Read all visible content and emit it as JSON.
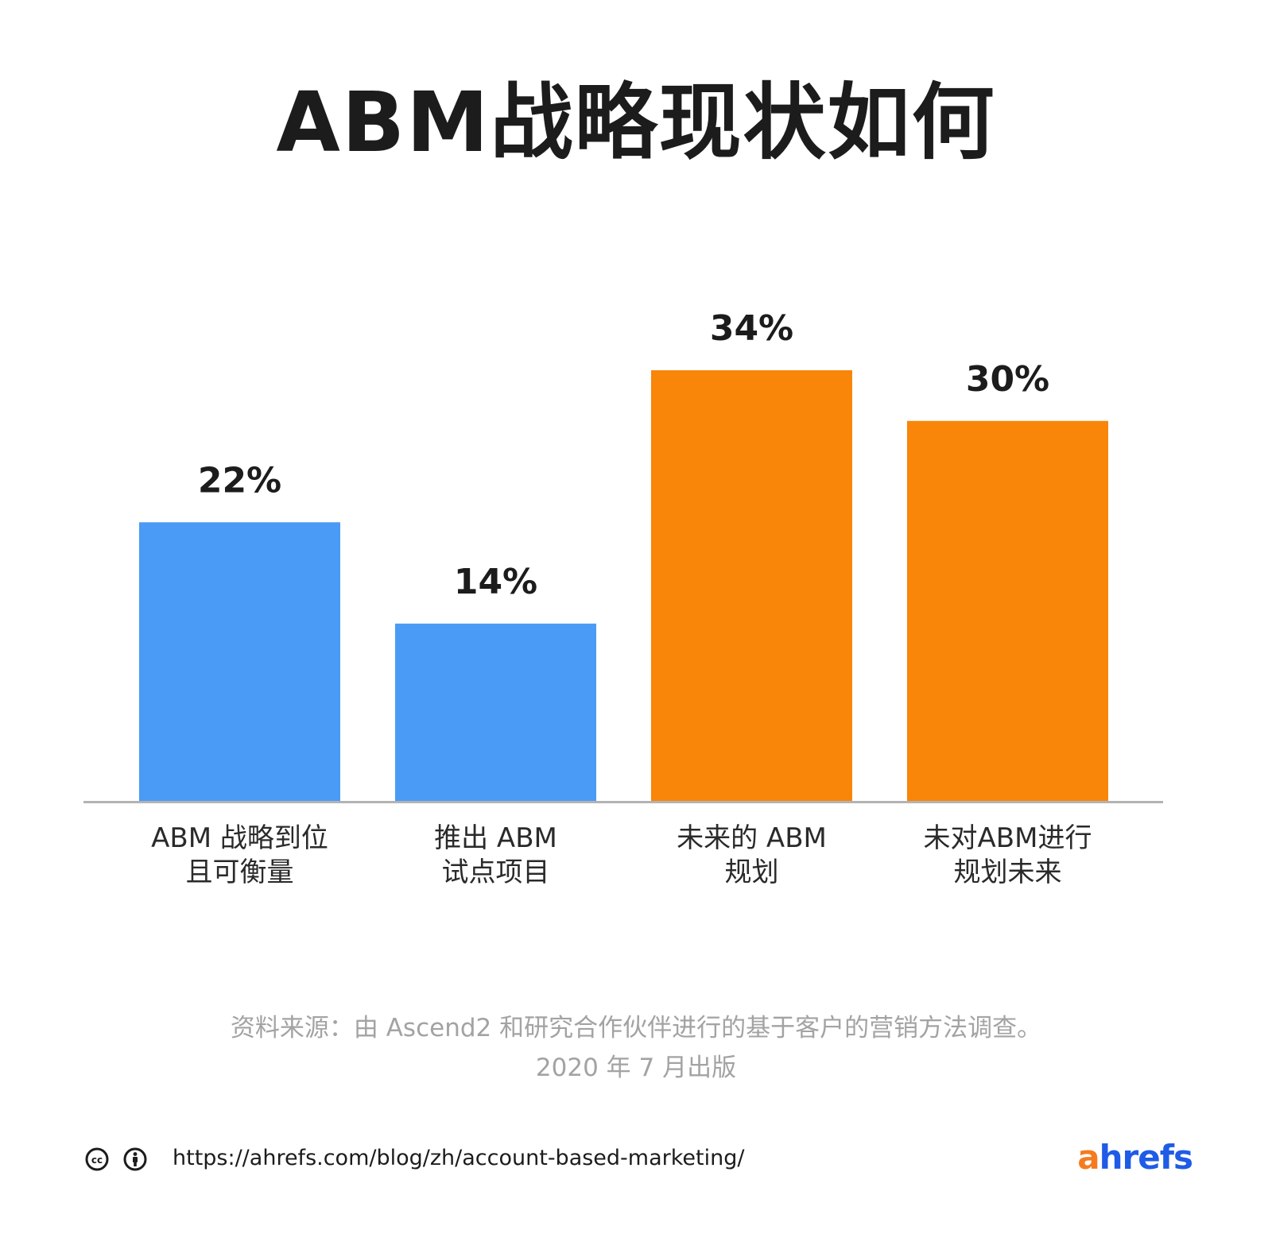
{
  "chart_data": {
    "type": "bar",
    "title": "ABM战略现状如何",
    "categories": [
      [
        "ABM 战略到位",
        "且可衡量"
      ],
      [
        "推出 ABM",
        "试点项目"
      ],
      [
        "未来的 ABM",
        "规划"
      ],
      [
        "未对ABM进行",
        "规划未来"
      ]
    ],
    "values": [
      22,
      14,
      34,
      30
    ],
    "value_labels": [
      "22%",
      "14%",
      "34%",
      "30%"
    ],
    "bar_colors": [
      "#4a9bf5",
      "#4a9bf5",
      "#f98509",
      "#f98509"
    ],
    "ylim": [
      0,
      34
    ],
    "grid": false,
    "xlabel": "",
    "ylabel": ""
  },
  "source": {
    "line1": "资料来源：由 Ascend2 和研究合作伙伴进行的基于客户的营销方法调查。",
    "line2": "2020 年 7 月出版"
  },
  "footer": {
    "license_icons": [
      "cc-icon",
      "attribution-icon"
    ],
    "url": "https://ahrefs.com/blog/zh/account-based-marketing/",
    "brand_a": "a",
    "brand_rest": "hrefs",
    "brand_colors": {
      "a": "#f57b20",
      "rest": "#1f5be6"
    }
  },
  "colors": {
    "axis_line": "#b3b3b3",
    "source_text": "#a3a3a3"
  }
}
